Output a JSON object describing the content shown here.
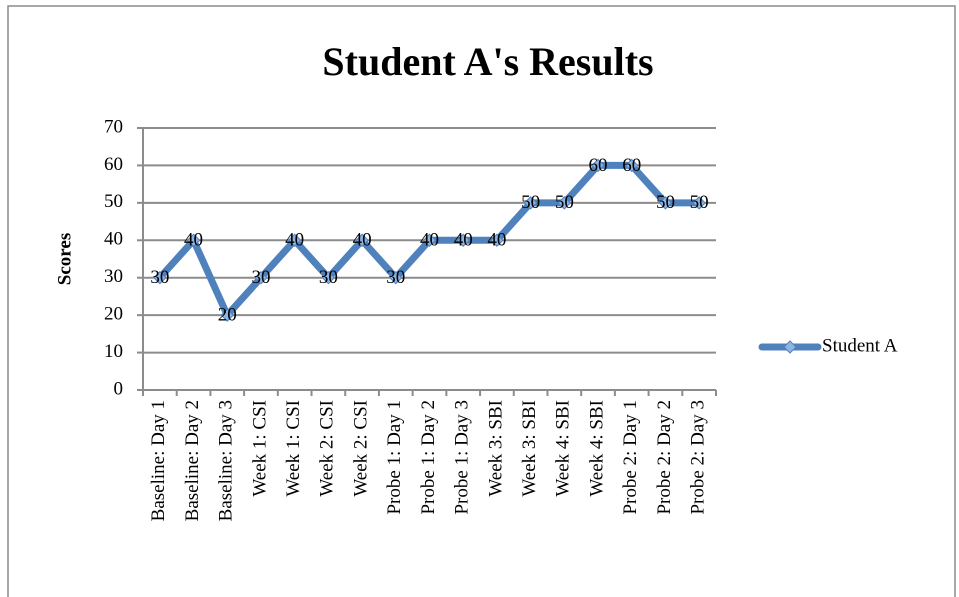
{
  "chart_data": {
    "type": "line",
    "title": "Student A's Results",
    "y_label": "Scores",
    "categories": [
      "Baseline: Day 1",
      "Baseline: Day 2",
      "Baseline: Day 3",
      "Week 1: CSI",
      "Week 1: CSI",
      "Week 2: CSI",
      "Week 2: CSI",
      "Probe 1: Day 1",
      "Probe 1: Day 2",
      "Probe 1: Day 3",
      "Week 3: SBI",
      "Week 3: SBI",
      "Week 4: SBI",
      "Week 4: SBI",
      "Probe 2: Day 1",
      "Probe 2: Day 2",
      "Probe 2: Day 3"
    ],
    "series": [
      {
        "name": "Student A",
        "color": "#4f81bd",
        "values": [
          30,
          40,
          20,
          30,
          40,
          30,
          40,
          30,
          40,
          40,
          40,
          50,
          50,
          60,
          60,
          50,
          50
        ]
      }
    ],
    "ylim": [
      0,
      70
    ],
    "yticks": [
      0,
      10,
      20,
      30,
      40,
      50,
      60,
      70
    ],
    "grid": true,
    "legend": "right",
    "data_labels": true
  }
}
